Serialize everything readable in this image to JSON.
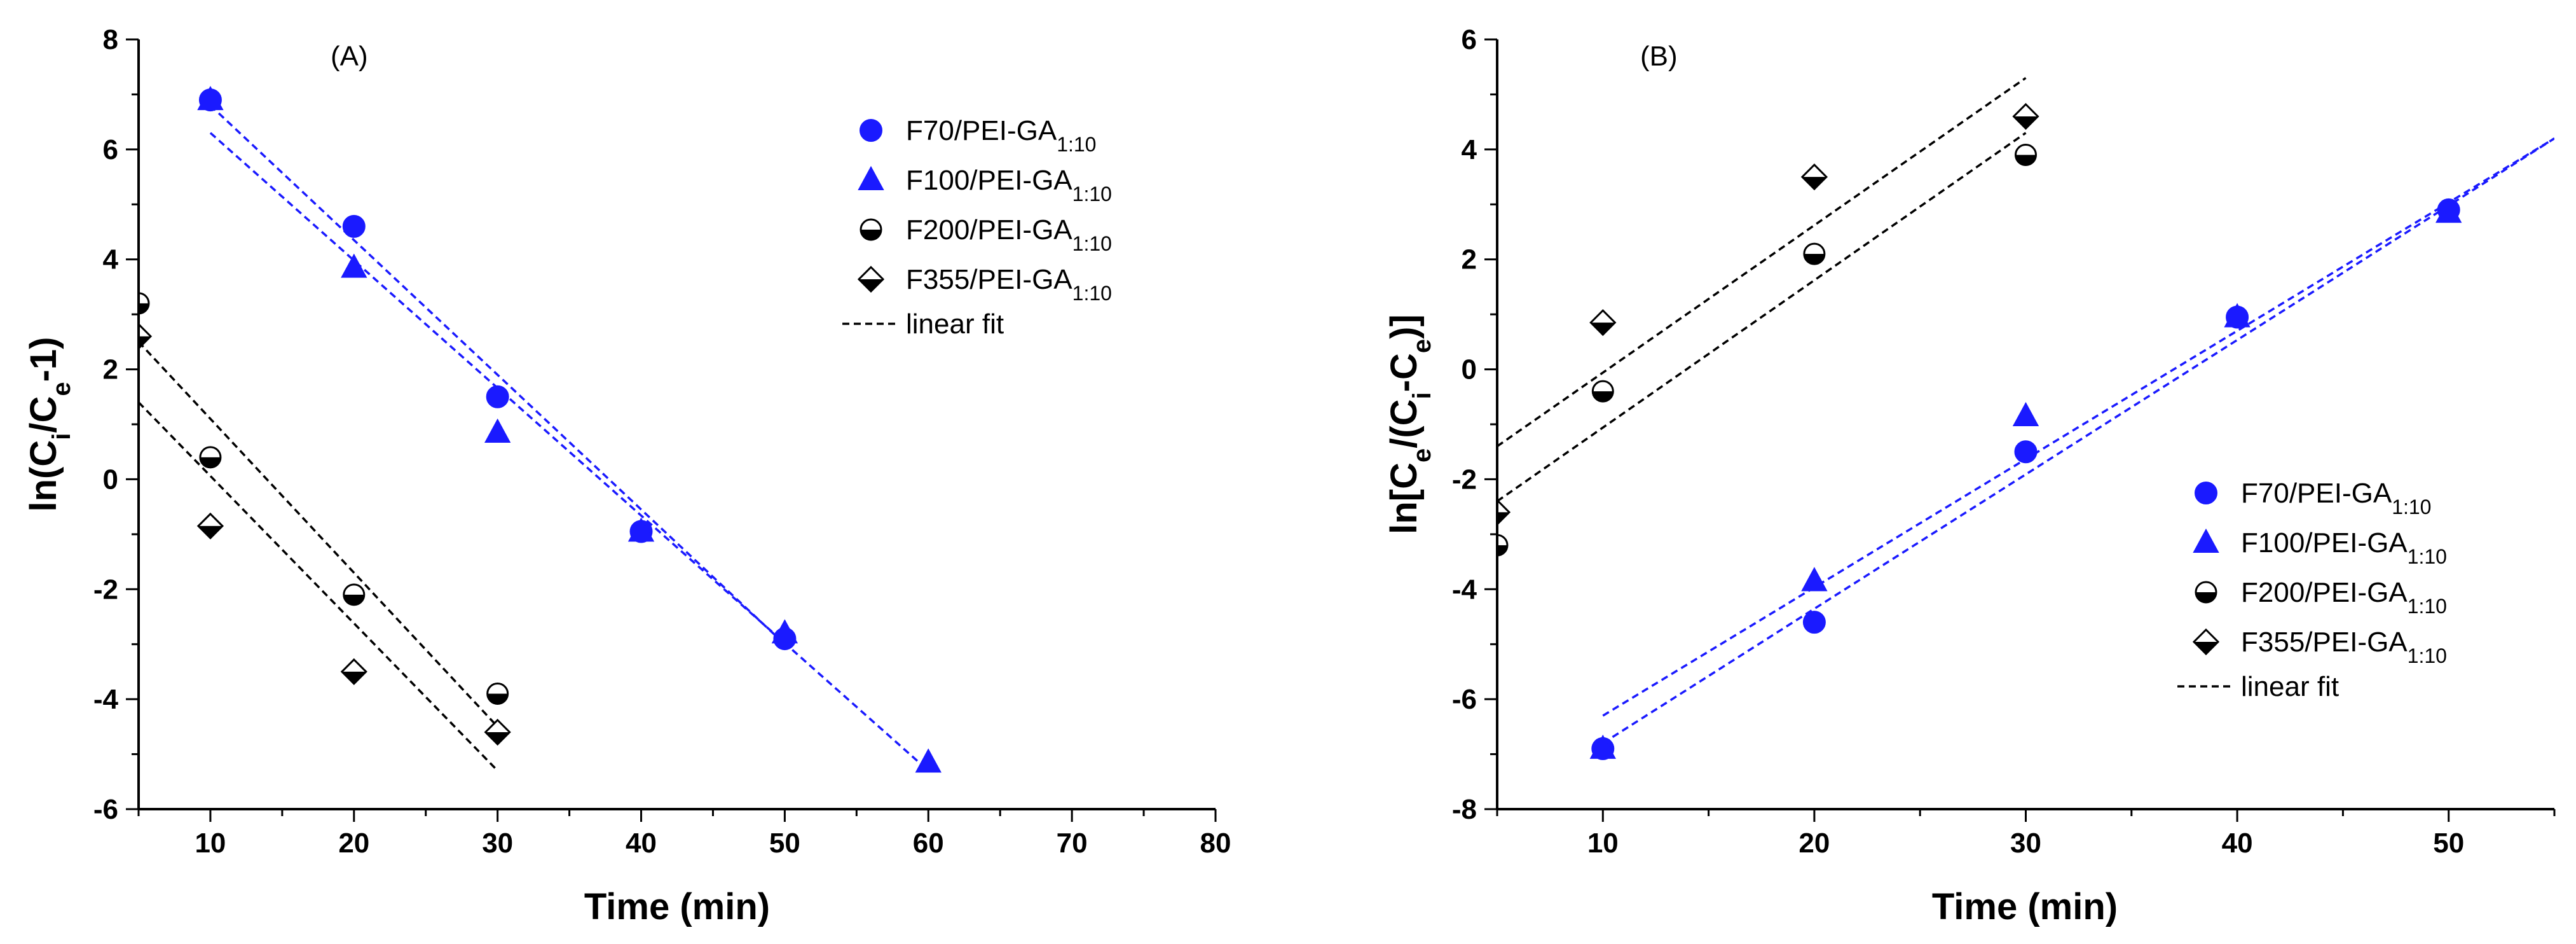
{
  "chart_data": [
    {
      "type": "scatter",
      "panel_label": "(A)",
      "ylabel": {
        "main": "ln(C",
        "sub1": "i",
        "mid": "/C",
        "sub2": "e",
        "end": "-1)"
      },
      "xlabel": "Time (min)",
      "xlim": [
        5,
        80
      ],
      "ylim": [
        -6,
        8
      ],
      "xticks": [
        10,
        20,
        30,
        40,
        50,
        60,
        70,
        80
      ],
      "yticks": [
        -6,
        -4,
        -2,
        0,
        2,
        4,
        6,
        8
      ],
      "legend_position": "top-right",
      "fit_label": "linear fit",
      "series": [
        {
          "name": "F70/PEI-GA",
          "subscript": "1:10",
          "marker": "circle",
          "color": "#1a1aff",
          "x": [
            10,
            20,
            30,
            40,
            50
          ],
          "y": [
            6.9,
            4.6,
            1.5,
            -0.95,
            -2.9
          ],
          "fit": {
            "x": [
              10,
              50
            ],
            "y": [
              6.8,
              -3.0
            ],
            "color": "#1a1aff"
          }
        },
        {
          "name": "F100/PEI-GA",
          "subscript": "1:10",
          "marker": "triangle",
          "color": "#1a1aff",
          "x": [
            10,
            20,
            30,
            40,
            50,
            60
          ],
          "y": [
            6.9,
            3.85,
            0.85,
            -0.95,
            -2.8,
            -5.15
          ],
          "fit": {
            "x": [
              10,
              60
            ],
            "y": [
              6.3,
              -5.3
            ],
            "color": "#1a1aff"
          }
        },
        {
          "name": "F200/PEI-GA",
          "subscript": "1:10",
          "marker": "half-circle",
          "color": "#000000",
          "x": [
            5,
            10,
            20,
            30
          ],
          "y": [
            3.2,
            0.4,
            -2.1,
            -3.9
          ],
          "fit": {
            "x": [
              5,
              30
            ],
            "y": [
              2.5,
              -4.5
            ],
            "color": "#000000"
          }
        },
        {
          "name": "F355/PEI-GA",
          "subscript": "1:10",
          "marker": "half-diamond",
          "color": "#000000",
          "x": [
            5,
            10,
            20,
            30
          ],
          "y": [
            2.6,
            -0.85,
            -3.5,
            -4.6
          ],
          "fit": {
            "x": [
              5,
              30
            ],
            "y": [
              1.4,
              -5.3
            ],
            "color": "#000000"
          }
        }
      ]
    },
    {
      "type": "scatter",
      "panel_label": "(B)",
      "ylabel": {
        "main": "ln[C",
        "sub1": "e",
        "mid": "/(C",
        "sub2": "i",
        "mid2": "-C",
        "sub3": "e",
        "end": ")]"
      },
      "xlabel": "Time (min)",
      "xlim": [
        5,
        55
      ],
      "ylim": [
        -8,
        6
      ],
      "xticks": [
        10,
        20,
        30,
        40,
        50
      ],
      "yticks": [
        -8,
        -6,
        -4,
        -2,
        0,
        2,
        4,
        6
      ],
      "legend_position": "bottom-right",
      "fit_label": "linear fit",
      "series": [
        {
          "name": "F70/PEI-GA",
          "subscript": "1:10",
          "marker": "circle",
          "color": "#1a1aff",
          "x": [
            10,
            20,
            30,
            40,
            50
          ],
          "y": [
            -6.9,
            -4.6,
            -1.5,
            0.95,
            2.9
          ],
          "fit": {
            "x": [
              10,
              55
            ],
            "y": [
              -6.8,
              4.2
            ],
            "color": "#1a1aff"
          }
        },
        {
          "name": "F100/PEI-GA",
          "subscript": "1:10",
          "marker": "triangle",
          "color": "#1a1aff",
          "x": [
            10,
            20,
            30,
            40,
            50
          ],
          "y": [
            -6.9,
            -3.85,
            -0.85,
            0.95,
            2.85
          ],
          "fit": {
            "x": [
              10,
              55
            ],
            "y": [
              -6.3,
              4.2
            ],
            "color": "#1a1aff"
          }
        },
        {
          "name": "F200/PEI-GA",
          "subscript": "1:10",
          "marker": "half-circle",
          "color": "#000000",
          "x": [
            5,
            10,
            20,
            30
          ],
          "y": [
            -3.2,
            -0.4,
            2.1,
            3.9
          ],
          "fit": {
            "x": [
              5,
              30
            ],
            "y": [
              -2.4,
              4.3
            ],
            "color": "#000000"
          }
        },
        {
          "name": "F355/PEI-GA",
          "subscript": "1:10",
          "marker": "half-diamond",
          "color": "#000000",
          "x": [
            5,
            10,
            20,
            30
          ],
          "y": [
            -2.6,
            0.85,
            3.5,
            4.6
          ],
          "fit": {
            "x": [
              5,
              30
            ],
            "y": [
              -1.4,
              5.3
            ],
            "color": "#000000"
          }
        }
      ]
    }
  ]
}
